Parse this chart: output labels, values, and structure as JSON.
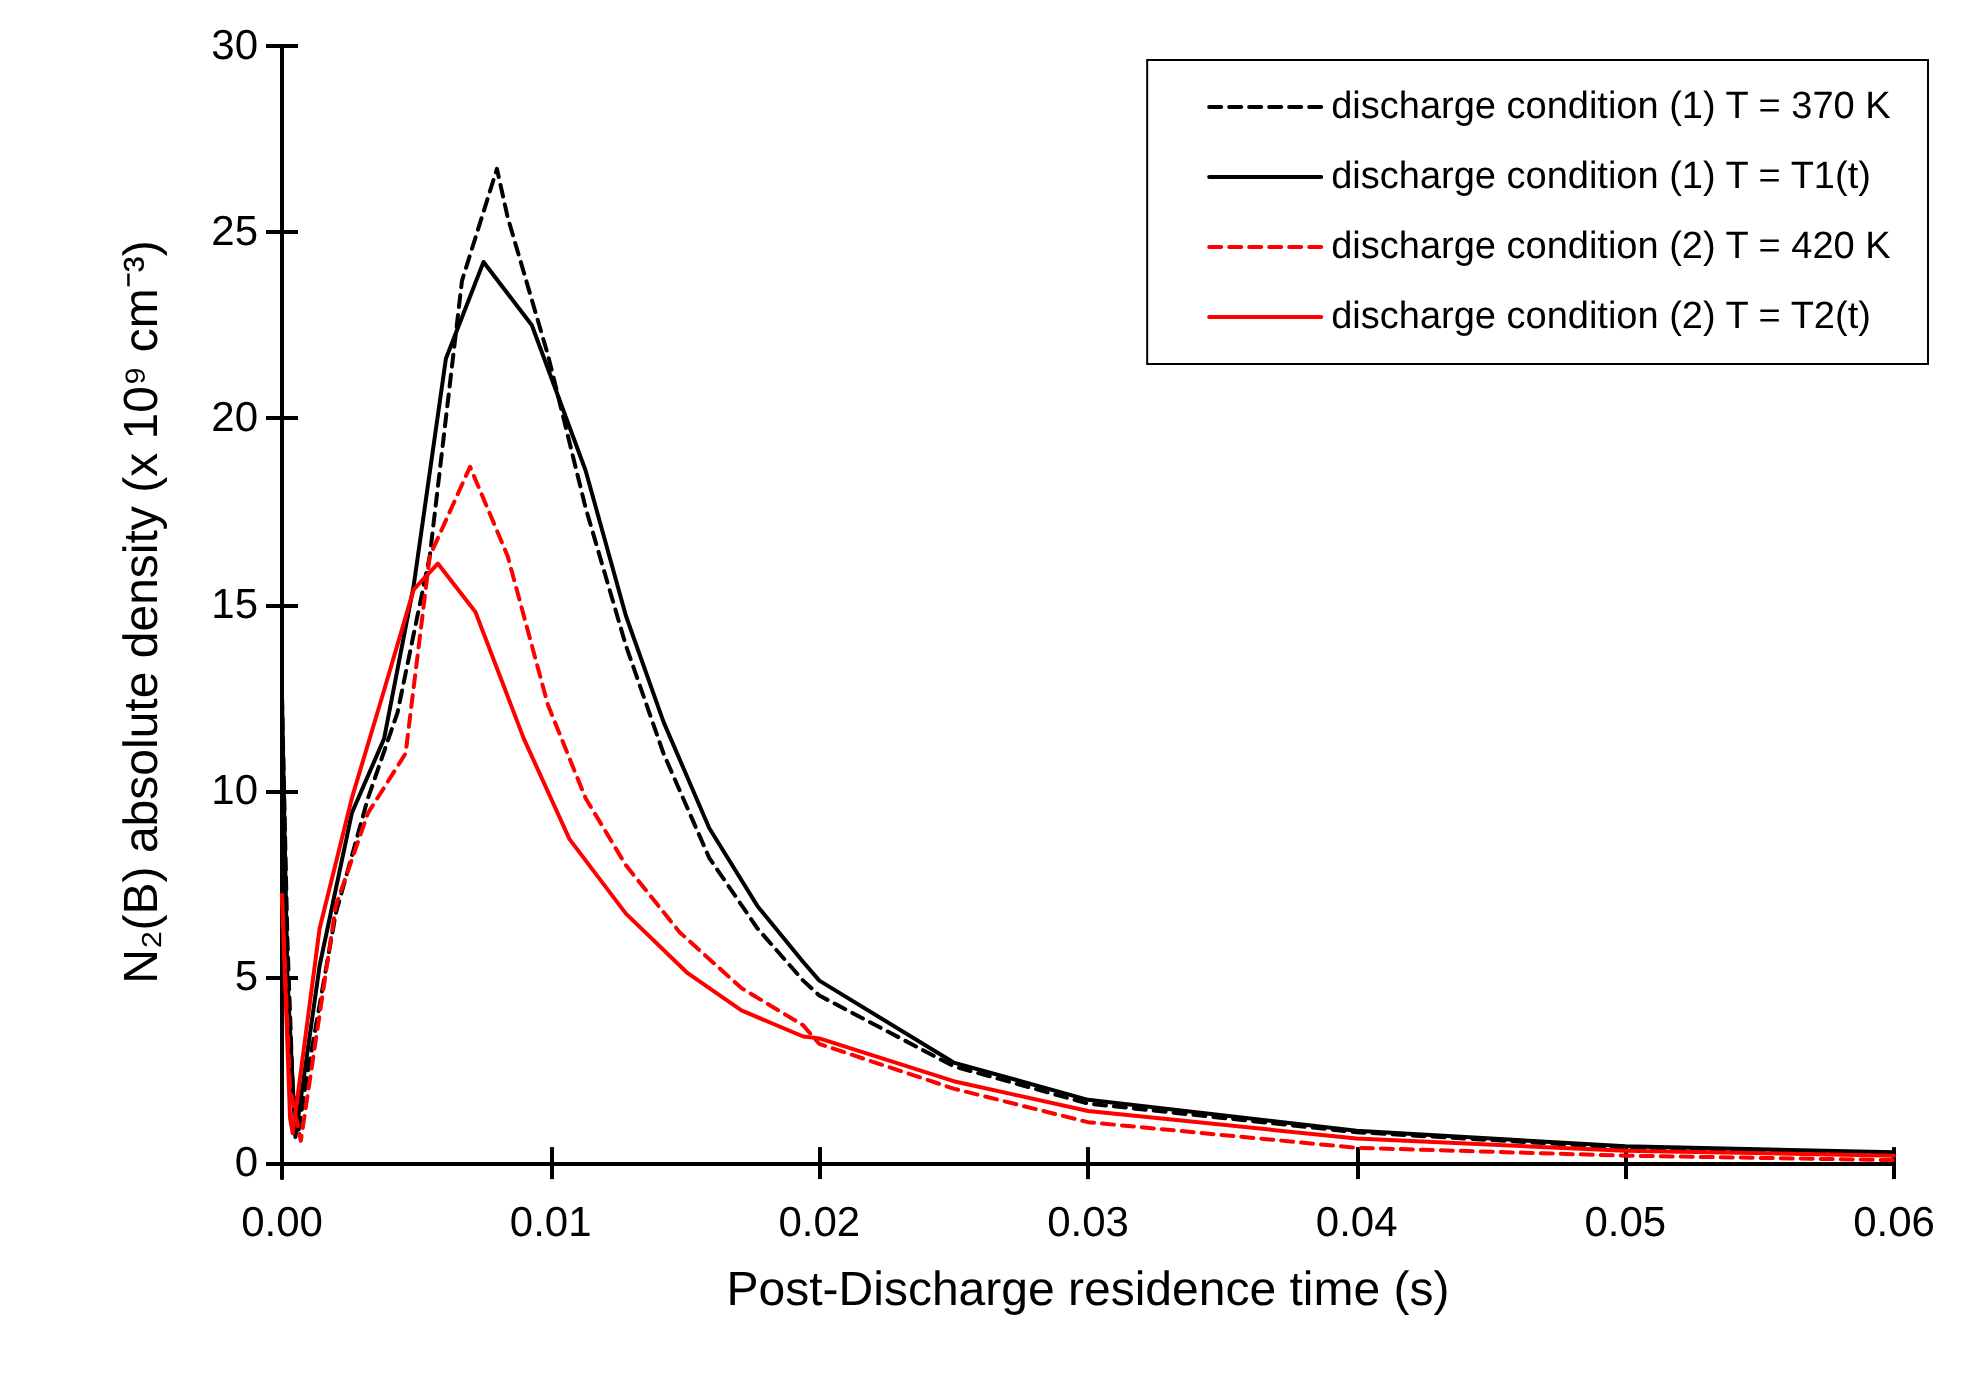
{
  "chart_data": {
    "type": "line",
    "xlabel": "Post-Discharge residence time (s)",
    "ylabel": "N₂(B) absolute density (x 10⁹ cm⁻³)",
    "xlim": [
      0,
      0.06
    ],
    "xticks": [
      {
        "value": 0,
        "label": "0.00"
      },
      {
        "value": 0.01,
        "label": "0.01"
      },
      {
        "value": 0.02,
        "label": "0.02"
      },
      {
        "value": 0.03,
        "label": "0.03"
      },
      {
        "value": 0.04,
        "label": "0.04"
      },
      {
        "value": 0.05,
        "label": "0.05"
      },
      {
        "value": 0.06,
        "label": "0.06"
      }
    ],
    "ylim": [
      -0.4,
      30
    ],
    "yticks": [
      0,
      5,
      10,
      15,
      20,
      25,
      30
    ],
    "grid": false,
    "legend": "top right",
    "marker": "none",
    "series": [
      {
        "name": "discharge condition (1) T = 370 K",
        "color": "#000000",
        "line_style": "dashed",
        "x": [
          0,
          0.0002,
          0.0004,
          0.0006,
          0.0009,
          0.002,
          0.0032,
          0.0043,
          0.0055,
          0.0067,
          0.008,
          0.0084,
          0.0099,
          0.0113,
          0.0128,
          0.0142,
          0.0159,
          0.0177,
          0.0194,
          0.02,
          0.025,
          0.03,
          0.04,
          0.05,
          0.06
        ],
        "values": [
          12.5,
          6,
          2,
          0.8,
          2.2,
          6.7,
          9.8,
          12.1,
          16.3,
          23.7,
          26.7,
          25.4,
          21.7,
          17.6,
          13.9,
          11,
          8.2,
          6.3,
          4.9,
          4.5,
          2.6,
          1.6,
          0.83,
          0.41,
          0.25
        ]
      },
      {
        "name": "discharge condition (1) T = T1(t)",
        "color": "#000000",
        "line_style": "solid",
        "x": [
          0,
          0.0002,
          0.0005,
          0.0014,
          0.0026,
          0.0038,
          0.0049,
          0.0061,
          0.0075,
          0.0093,
          0.0113,
          0.0128,
          0.0142,
          0.0159,
          0.0177,
          0.0194,
          0.02,
          0.025,
          0.03,
          0.04,
          0.05,
          0.06
        ],
        "values": [
          12.5,
          5,
          0.7,
          5.3,
          9.4,
          11.4,
          15.5,
          21.6,
          24.2,
          22.5,
          18.6,
          14.7,
          11.85,
          9,
          6.9,
          5.4,
          4.9,
          2.7,
          1.7,
          0.87,
          0.45,
          0.29
        ]
      },
      {
        "name": "discharge condition (2) T = 420 K",
        "color": "#ff0000",
        "line_style": "dashed",
        "x": [
          0,
          0.0003,
          0.0007,
          0.002,
          0.0032,
          0.0046,
          0.0055,
          0.007,
          0.0084,
          0.0099,
          0.0113,
          0.0128,
          0.0148,
          0.0171,
          0.0194,
          0.02,
          0.025,
          0.03,
          0.04,
          0.05,
          0.06
        ],
        "values": [
          7.2,
          2,
          0.6,
          6.9,
          9.4,
          11,
          16.3,
          18.7,
          16.3,
          12.3,
          9.8,
          8,
          6.2,
          4.7,
          3.7,
          3.2,
          2,
          1.1,
          0.41,
          0.2,
          0.08
        ]
      },
      {
        "name": "discharge condition (2) T = T2(t)",
        "color": "#ff0000",
        "line_style": "solid",
        "x": [
          0,
          0.0003,
          0.0004,
          0.0014,
          0.0026,
          0.0038,
          0.0049,
          0.0058,
          0.0072,
          0.009,
          0.0107,
          0.0128,
          0.0151,
          0.0171,
          0.0194,
          0.02,
          0.025,
          0.03,
          0.04,
          0.05,
          0.06
        ],
        "values": [
          7.2,
          1.2,
          0.8,
          6.3,
          9.8,
          12.7,
          15.4,
          16.1,
          14.8,
          11.4,
          8.7,
          6.7,
          5.1,
          4.1,
          3.4,
          3.35,
          2.2,
          1.4,
          0.66,
          0.33,
          0.2
        ]
      }
    ]
  }
}
